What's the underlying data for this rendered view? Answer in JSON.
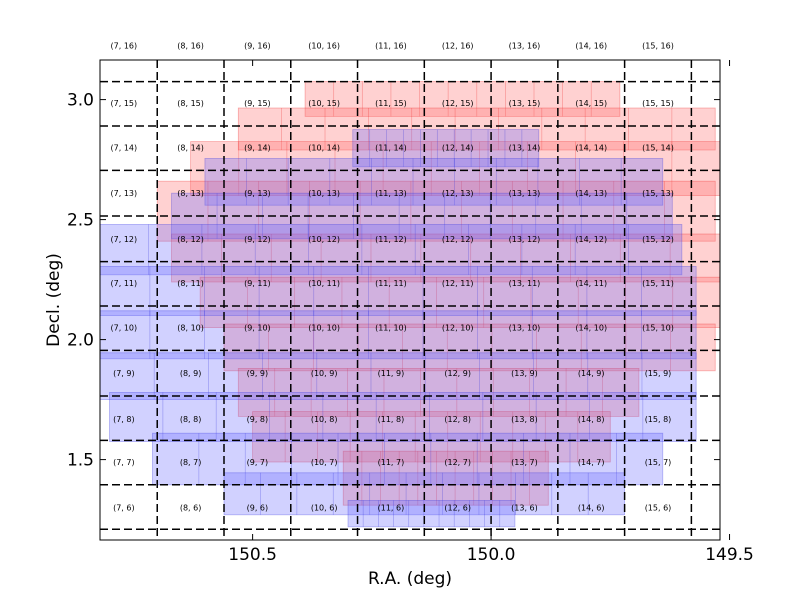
{
  "chart_data": {
    "type": "scatter",
    "title": "",
    "xlabel": "R.A. (deg)",
    "ylabel": "Decl. (deg)",
    "xlim": [
      150.82,
      149.52
    ],
    "ylim": [
      1.165,
      3.165
    ],
    "x_inverted": true,
    "xticks": [
      150.5,
      150.0,
      149.5
    ],
    "xtick_labels": [
      "150.5",
      "150.0",
      "149.5"
    ],
    "yticks": [
      1.5,
      2.0,
      2.5,
      3.0
    ],
    "ytick_labels": [
      "1.5",
      "2.0",
      "2.5",
      "3.0"
    ],
    "grid": {
      "style": "dashed",
      "color": "#000000",
      "ra_lines": [
        150.7,
        150.56,
        150.42,
        150.28,
        150.14,
        150.0,
        149.86,
        149.72,
        149.58
      ],
      "dec_lines": [
        1.21,
        1.395,
        1.58,
        1.765,
        1.955,
        2.14,
        2.325,
        2.515,
        2.705,
        2.89,
        3.075
      ]
    },
    "cells": {
      "col_indices": [
        7,
        8,
        9,
        10,
        11,
        12,
        13,
        14,
        15
      ],
      "row_indices": [
        6,
        7,
        8,
        9,
        10,
        11,
        12,
        13,
        14,
        15,
        16
      ],
      "col_centers_ra": [
        150.77,
        150.63,
        150.49,
        150.35,
        150.21,
        150.07,
        149.93,
        149.79,
        149.65
      ],
      "row_centers_dec": [
        1.3,
        1.49,
        1.67,
        1.86,
        2.05,
        2.235,
        2.42,
        2.61,
        2.8,
        2.985,
        3.225
      ],
      "labels": [
        [
          "(7, 6)",
          "(8, 6)",
          "(9, 6)",
          "(10, 6)",
          "(11, 6)",
          "(12, 6)",
          "(13, 6)",
          "(14, 6)",
          "(15, 6)"
        ],
        [
          "(7, 7)",
          "(8, 7)",
          "(9, 7)",
          "(10, 7)",
          "(11, 7)",
          "(12, 7)",
          "(13, 7)",
          "(14, 7)",
          "(15, 7)"
        ],
        [
          "(7, 8)",
          "(8, 8)",
          "(9, 8)",
          "(10, 8)",
          "(11, 8)",
          "(12, 8)",
          "(13, 8)",
          "(14, 8)",
          "(15, 8)"
        ],
        [
          "(7, 9)",
          "(8, 9)",
          "(9, 9)",
          "(10, 9)",
          "(11, 9)",
          "(12, 9)",
          "(13, 9)",
          "(14, 9)",
          "(15, 9)"
        ],
        [
          "(7, 10)",
          "(8, 10)",
          "(9, 10)",
          "(10, 10)",
          "(11, 10)",
          "(12, 10)",
          "(13, 10)",
          "(14, 10)",
          "(15, 10)"
        ],
        [
          "(7, 11)",
          "(8, 11)",
          "(9, 11)",
          "(10, 11)",
          "(11, 11)",
          "(12, 11)",
          "(13, 11)",
          "(14, 11)",
          "(15, 11)"
        ],
        [
          "(7, 12)",
          "(8, 12)",
          "(9, 12)",
          "(10, 12)",
          "(11, 12)",
          "(12, 12)",
          "(13, 12)",
          "(14, 12)",
          "(15, 12)"
        ],
        [
          "(7, 13)",
          "(8, 13)",
          "(9, 13)",
          "(10, 13)",
          "(11, 13)",
          "(12, 13)",
          "(13, 13)",
          "(14, 13)",
          "(15, 13)"
        ],
        [
          "(7, 14)",
          "(8, 14)",
          "(9, 14)",
          "(10, 14)",
          "(11, 14)",
          "(12, 14)",
          "(13, 14)",
          "(14, 14)",
          "(15, 14)"
        ],
        [
          "(7, 15)",
          "(8, 15)",
          "(9, 15)",
          "(10, 15)",
          "(11, 15)",
          "(12, 15)",
          "(13, 15)",
          "(14, 15)",
          "(15, 15)"
        ],
        [
          "(7, 16)",
          "(8, 16)",
          "(9, 16)",
          "(10, 16)",
          "(11, 16)",
          "(12, 16)",
          "(13, 16)",
          "(14, 16)",
          "(15, 16)"
        ]
      ]
    },
    "series": [
      {
        "color": "#ff6666",
        "edge_color": "#ee2222",
        "opacity": 0.3,
        "footprints": [
          {
            "dec": [
              2.93,
              3.075
            ],
            "ra": [
              150.39,
              149.73
            ]
          },
          {
            "dec": [
              2.79,
              2.965
            ],
            "ra": [
              150.53,
              149.53
            ]
          },
          {
            "dec": [
              2.6,
              2.825
            ],
            "ra": [
              150.63,
              149.52
            ]
          },
          {
            "dec": [
              2.41,
              2.66
            ],
            "ra": [
              150.7,
              149.53
            ]
          },
          {
            "dec": [
              2.24,
              2.44
            ],
            "ra": [
              150.67,
              149.52
            ]
          },
          {
            "dec": [
              2.05,
              2.26
            ],
            "ra": [
              150.61,
              149.52
            ]
          },
          {
            "dec": [
              1.87,
              2.065
            ],
            "ra": [
              150.56,
              149.53
            ]
          },
          {
            "dec": [
              1.68,
              1.88
            ],
            "ra": [
              150.53,
              149.69
            ]
          },
          {
            "dec": [
              1.49,
              1.7
            ],
            "ra": [
              150.5,
              149.75
            ]
          },
          {
            "dec": [
              1.31,
              1.535
            ],
            "ra": [
              150.31,
              149.88
            ]
          }
        ]
      },
      {
        "color": "#6666ff",
        "edge_color": "#3333dd",
        "opacity": 0.3,
        "footprints": [
          {
            "dec": [
              2.72,
              2.875
            ],
            "ra": [
              150.29,
              149.9
            ]
          },
          {
            "dec": [
              2.56,
              2.755
            ],
            "ra": [
              150.6,
              149.64
            ]
          },
          {
            "dec": [
              2.42,
              2.61
            ],
            "ra": [
              150.67,
              149.62
            ]
          },
          {
            "dec": [
              2.27,
              2.48
            ],
            "ra": [
              150.83,
              149.6
            ]
          },
          {
            "dec": [
              2.1,
              2.305
            ],
            "ra": [
              150.83,
              149.57
            ]
          },
          {
            "dec": [
              1.92,
              2.12
            ],
            "ra": [
              150.83,
              149.57
            ]
          },
          {
            "dec": [
              1.75,
              1.945
            ],
            "ra": [
              150.82,
              149.57
            ]
          },
          {
            "dec": [
              1.575,
              1.78
            ],
            "ra": [
              150.8,
              149.57
            ]
          },
          {
            "dec": [
              1.395,
              1.61
            ],
            "ra": [
              150.71,
              149.64
            ]
          },
          {
            "dec": [
              1.27,
              1.445
            ],
            "ra": [
              150.56,
              149.72
            ]
          },
          {
            "dec": [
              1.22,
              1.33
            ],
            "ra": [
              150.3,
              149.95
            ]
          }
        ]
      }
    ]
  }
}
